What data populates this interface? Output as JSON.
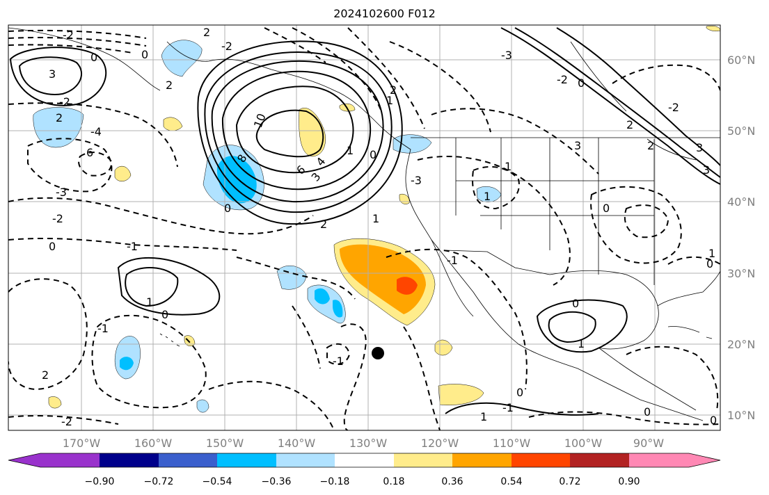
{
  "title": "2024102600 F012",
  "map": {
    "lat_labels": [
      "60°N",
      "50°N",
      "40°N",
      "30°N",
      "20°N",
      "10°N"
    ],
    "lon_labels": [
      "170°W",
      "160°W",
      "150°W",
      "140°W",
      "130°W",
      "120°W",
      "110°W",
      "100°W",
      "90°W"
    ],
    "contour_labels": [
      "-2",
      "2",
      "0",
      "-2",
      "3",
      "0",
      "-2",
      "2",
      "-4",
      "6",
      "-3",
      "-2",
      "0",
      "-1",
      "1",
      "-1",
      "0",
      "2",
      "-2",
      "-1",
      "10",
      "8",
      "6",
      "4",
      "3",
      "1",
      "0",
      "0",
      "-3",
      "1",
      "2",
      "3",
      "-3",
      "0",
      "2",
      "1",
      "-1",
      "0",
      "0",
      "0",
      "-1",
      "1",
      "0",
      "0",
      "3",
      "1",
      "-2",
      "0",
      "2",
      "1",
      "1",
      "2",
      "-2",
      "3",
      "2",
      "1"
    ],
    "marker": "storm-center-dot"
  },
  "colorbar": {
    "labels": [
      "−0.90",
      "−0.72",
      "−0.54",
      "−0.36",
      "−0.18",
      "0.18",
      "0.36",
      "0.54",
      "0.72",
      "0.90"
    ],
    "colors": [
      "#9932cc",
      "#00008b",
      "#3a5fcd",
      "#00bfff",
      "#b0e2ff",
      "#ffffff",
      "#ffec8b",
      "#ffa500",
      "#ff4500",
      "#b22222",
      "#ff88b4"
    ]
  }
}
